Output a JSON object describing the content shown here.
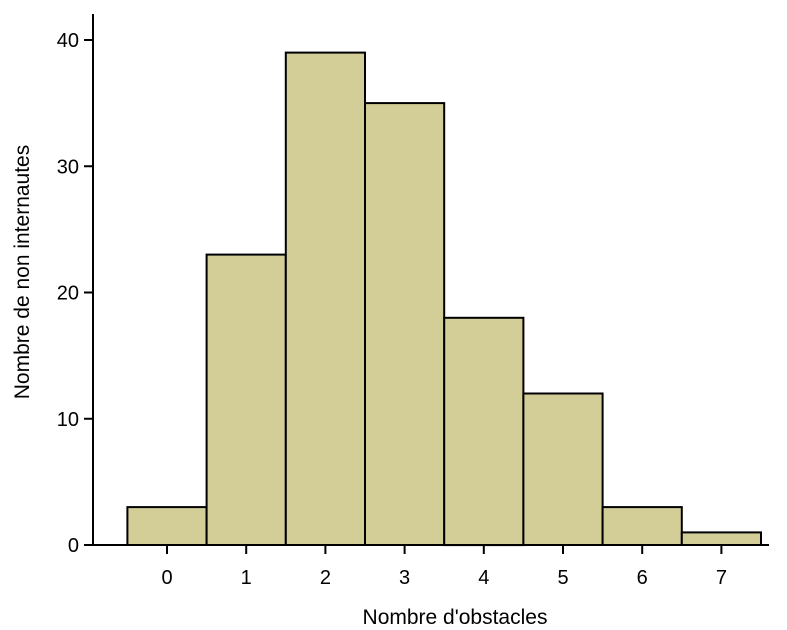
{
  "chart_data": {
    "type": "bar",
    "title": "",
    "xlabel": "Nombre d'obstacles",
    "ylabel": "Nombre de non internautes",
    "categories": [
      "0",
      "1",
      "2",
      "3",
      "4",
      "5",
      "6",
      "7"
    ],
    "values": [
      3,
      23,
      39,
      35,
      18,
      12,
      3,
      1
    ],
    "ylim": [
      0,
      40
    ],
    "yticks": [
      "0",
      "10",
      "20",
      "30",
      "40"
    ],
    "grid": false,
    "legend": "none",
    "bar_color": "#d3ce98",
    "bar_edge_color": "#000000"
  }
}
